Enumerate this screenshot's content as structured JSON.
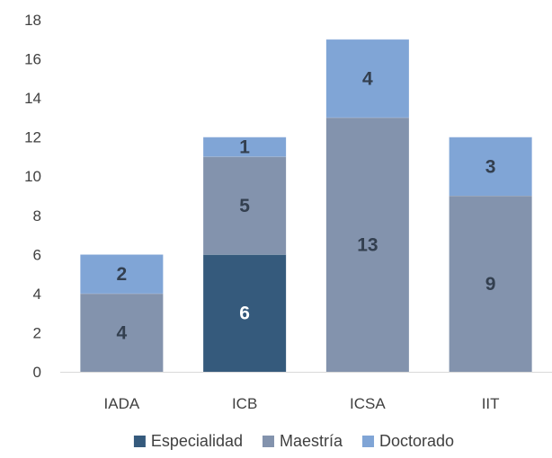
{
  "chart_data": {
    "type": "bar",
    "stacked": true,
    "title": "",
    "xlabel": "",
    "ylabel": "",
    "categories": [
      "IADA",
      "ICB",
      "ICSA",
      "IIT"
    ],
    "series": [
      {
        "name": "Especialidad",
        "color": "#355a7c",
        "label_color": "#ffffff",
        "values": [
          0,
          6,
          0,
          0
        ]
      },
      {
        "name": "Maestría",
        "color": "#8393ad",
        "label_color": "#333f4f",
        "values": [
          4,
          5,
          13,
          9
        ]
      },
      {
        "name": "Doctorado",
        "color": "#80a5d6",
        "label_color": "#333f4f",
        "values": [
          2,
          1,
          4,
          3
        ]
      }
    ],
    "ylim": [
      0,
      18
    ],
    "yticks": [
      0,
      2,
      4,
      6,
      8,
      10,
      12,
      14,
      16,
      18
    ],
    "grid": false,
    "legend": "bottom"
  }
}
